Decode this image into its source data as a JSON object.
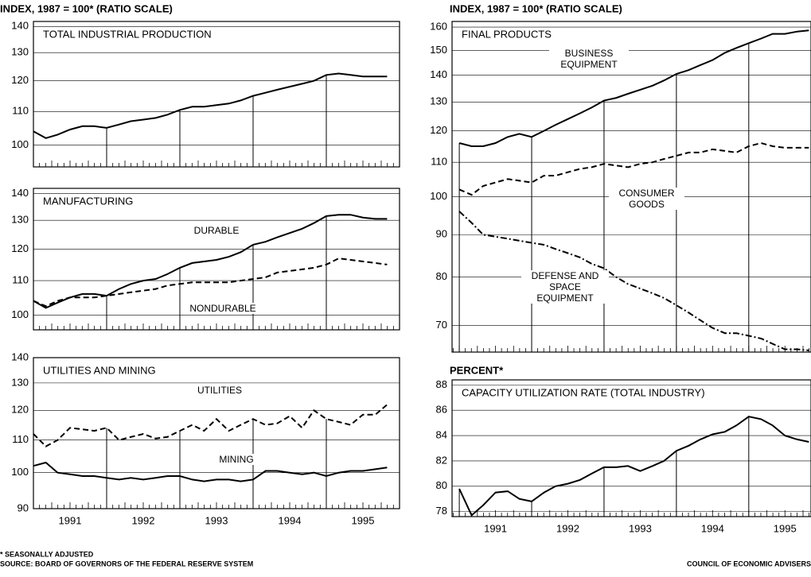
{
  "footnote": "* SEASONALLY ADJUSTED",
  "source": "SOURCE: BOARD OF GOVERNORS OF THE FEDERAL RESERVE SYSTEM",
  "credit": "COUNCIL OF ECONOMIC ADVISERS",
  "chart_data": [
    {
      "type": "line",
      "title": "TOTAL INDUSTRIAL PRODUCTION",
      "ylabel": "INDEX, 1987 = 100* (RATIO SCALE)",
      "log_scale": true,
      "grid": true,
      "xlim": [
        1991,
        1996
      ],
      "ylim": [
        94,
        142
      ],
      "yticks": [
        100,
        110,
        120,
        130,
        140
      ],
      "x": [
        1991.0,
        1991.17,
        1991.33,
        1991.5,
        1991.67,
        1991.83,
        1992.0,
        1992.17,
        1992.33,
        1992.5,
        1992.67,
        1992.83,
        1993.0,
        1993.17,
        1993.33,
        1993.5,
        1993.67,
        1993.83,
        1994.0,
        1994.17,
        1994.33,
        1994.5,
        1994.67,
        1994.83,
        1995.0,
        1995.17,
        1995.33,
        1995.5,
        1995.67,
        1995.83
      ],
      "series": [
        {
          "color": "#000000",
          "dash": "solid",
          "values": [
            104,
            102,
            103,
            104.5,
            105.5,
            105.5,
            105,
            106,
            107,
            107.5,
            108,
            109,
            110.5,
            111.5,
            111.5,
            112,
            112.5,
            113.5,
            115,
            116,
            117,
            118,
            119,
            120,
            122,
            122.5,
            122,
            121.5,
            121.5,
            121.5
          ]
        }
      ]
    },
    {
      "type": "line",
      "title": "MANUFACTURING",
      "log_scale": true,
      "grid": true,
      "xlim": [
        1991,
        1996
      ],
      "ylim": [
        96,
        142
      ],
      "yticks": [
        100,
        110,
        120,
        130,
        140
      ],
      "x": [
        1991.0,
        1991.17,
        1991.33,
        1991.5,
        1991.67,
        1991.83,
        1992.0,
        1992.17,
        1992.33,
        1992.5,
        1992.67,
        1992.83,
        1993.0,
        1993.17,
        1993.33,
        1993.5,
        1993.67,
        1993.83,
        1994.0,
        1994.17,
        1994.33,
        1994.5,
        1994.67,
        1994.83,
        1995.0,
        1995.17,
        1995.33,
        1995.5,
        1995.67,
        1995.83
      ],
      "series": [
        {
          "name": "DURABLE",
          "color": "#000000",
          "dash": "solid",
          "values": [
            104,
            102,
            103.5,
            105,
            106,
            106,
            105.5,
            107.5,
            109,
            110,
            110.5,
            112,
            114,
            115.5,
            116,
            116.5,
            117.5,
            119,
            121.5,
            122.5,
            124,
            125.5,
            127,
            129,
            131.5,
            132,
            132,
            131,
            130.5,
            130.5
          ]
        },
        {
          "name": "NONDURABLE",
          "color": "#000000",
          "dash": "dashed",
          "values": [
            104,
            102.5,
            104,
            105,
            105,
            105,
            105.5,
            106,
            106.5,
            107,
            107.5,
            108.5,
            109,
            109.5,
            109.5,
            109.5,
            109.5,
            110,
            110.5,
            111,
            112.5,
            113,
            113.5,
            114,
            115,
            117,
            116.5,
            116,
            115.5,
            115
          ]
        }
      ]
    },
    {
      "type": "line",
      "title": "UTILITIES AND MINING",
      "log_scale": true,
      "grid": true,
      "xlim": [
        1991,
        1996
      ],
      "ylim": [
        90,
        140
      ],
      "yticks": [
        90,
        100,
        110,
        120,
        130,
        140
      ],
      "xticks": [
        {
          "value": 1991.5,
          "label": "1991"
        },
        {
          "value": 1992.5,
          "label": "1992"
        },
        {
          "value": 1993.5,
          "label": "1993"
        },
        {
          "value": 1994.5,
          "label": "1994"
        },
        {
          "value": 1995.5,
          "label": "1995"
        }
      ],
      "x": [
        1991.0,
        1991.17,
        1991.33,
        1991.5,
        1991.67,
        1991.83,
        1992.0,
        1992.17,
        1992.33,
        1992.5,
        1992.67,
        1992.83,
        1993.0,
        1993.17,
        1993.33,
        1993.5,
        1993.67,
        1993.83,
        1994.0,
        1994.17,
        1994.33,
        1994.5,
        1994.67,
        1994.83,
        1995.0,
        1995.17,
        1995.33,
        1995.5,
        1995.67,
        1995.83
      ],
      "series": [
        {
          "name": "UTILITIES",
          "color": "#000000",
          "dash": "dashed",
          "values": [
            112,
            108,
            110,
            114,
            113.5,
            113,
            114,
            110,
            111,
            112,
            110.5,
            111,
            113,
            115,
            113,
            117,
            113,
            115,
            117,
            115,
            115.5,
            118,
            114,
            120,
            117,
            116,
            115,
            118.5,
            118.5,
            122
          ]
        },
        {
          "name": "MINING",
          "color": "#000000",
          "dash": "solid",
          "values": [
            102,
            103,
            100,
            99.5,
            99,
            99,
            98.5,
            98,
            98.5,
            98,
            98.5,
            99,
            99,
            98,
            97.5,
            98,
            98,
            97.5,
            98,
            100.5,
            100.5,
            100,
            99.5,
            100,
            99,
            100,
            100.5,
            100.5,
            101,
            101.5
          ]
        }
      ]
    },
    {
      "type": "line",
      "title": "FINAL PRODUCTS",
      "ylabel": "INDEX, 1987 = 100* (RATIO SCALE)",
      "log_scale": true,
      "grid": true,
      "xlim": [
        1990.9,
        1995.86
      ],
      "ylim": [
        65,
        162.5
      ],
      "yticks": [
        70,
        80,
        90,
        100,
        110,
        120,
        130,
        140,
        150,
        160
      ],
      "x": [
        1991.0,
        1991.17,
        1991.33,
        1991.5,
        1991.67,
        1991.83,
        1992.0,
        1992.17,
        1992.33,
        1992.5,
        1992.67,
        1992.83,
        1993.0,
        1993.17,
        1993.33,
        1993.5,
        1993.67,
        1993.83,
        1994.0,
        1994.17,
        1994.33,
        1994.5,
        1994.67,
        1994.83,
        1995.0,
        1995.17,
        1995.33,
        1995.5,
        1995.67,
        1995.83
      ],
      "series": [
        {
          "name": "BUSINESS EQUIPMENT",
          "color": "#000000",
          "dash": "solid",
          "values": [
            116,
            115,
            115,
            116,
            118,
            119,
            118,
            120,
            122,
            124,
            126,
            128,
            130.5,
            131.5,
            133,
            134.5,
            136,
            138,
            140.5,
            142,
            144,
            146,
            149,
            151,
            153,
            155,
            157,
            157,
            158,
            158.5
          ]
        },
        {
          "name": "CONSUMER GOODS",
          "color": "#000000",
          "dash": "dashed",
          "values": [
            102,
            100.5,
            103,
            104,
            105,
            104.5,
            104,
            106,
            106,
            107,
            108,
            108.5,
            109.5,
            109,
            108.5,
            109.5,
            110,
            111,
            112,
            113,
            113,
            114,
            113.5,
            113,
            115,
            116,
            115,
            114.5,
            114.5,
            114.5
          ]
        },
        {
          "name": "DEFENSE AND SPACE EQUIPMENT",
          "color": "#000000",
          "dash": "dashdot",
          "values": [
            96,
            93,
            90,
            89.5,
            89,
            88.5,
            88,
            87.5,
            86.5,
            85.5,
            84.5,
            83,
            82,
            80,
            78.5,
            77.5,
            76.5,
            75.5,
            74,
            72.5,
            71,
            69.5,
            68.5,
            68.5,
            68,
            67.5,
            66.5,
            65.5,
            65.5,
            65.3
          ]
        }
      ]
    },
    {
      "type": "line",
      "title": "CAPACITY UTILIZATION RATE (TOTAL INDUSTRY)",
      "ylabel": "PERCENT*",
      "log_scale": false,
      "grid": true,
      "xlim": [
        1990.9,
        1995.86
      ],
      "ylim": [
        77.6,
        88.4
      ],
      "yticks": [
        78,
        80,
        82,
        84,
        86,
        88
      ],
      "xticks": [
        {
          "value": 1991.5,
          "label": "1991"
        },
        {
          "value": 1992.5,
          "label": "1992"
        },
        {
          "value": 1993.5,
          "label": "1993"
        },
        {
          "value": 1994.5,
          "label": "1994"
        },
        {
          "value": 1995.5,
          "label": "1995"
        }
      ],
      "x": [
        1991.0,
        1991.17,
        1991.33,
        1991.5,
        1991.67,
        1991.83,
        1992.0,
        1992.17,
        1992.33,
        1992.5,
        1992.67,
        1992.83,
        1993.0,
        1993.17,
        1993.33,
        1993.5,
        1993.67,
        1993.83,
        1994.0,
        1994.17,
        1994.33,
        1994.5,
        1994.67,
        1994.83,
        1995.0,
        1995.17,
        1995.33,
        1995.5,
        1995.67,
        1995.83
      ],
      "series": [
        {
          "color": "#000000",
          "dash": "solid",
          "values": [
            79.8,
            77.7,
            78.5,
            79.5,
            79.6,
            79.0,
            78.8,
            79.5,
            80.0,
            80.2,
            80.5,
            81.0,
            81.5,
            81.5,
            81.6,
            81.2,
            81.6,
            82.0,
            82.8,
            83.2,
            83.7,
            84.1,
            84.3,
            84.8,
            85.5,
            85.3,
            84.8,
            84.0,
            83.7,
            83.5
          ]
        }
      ]
    }
  ]
}
